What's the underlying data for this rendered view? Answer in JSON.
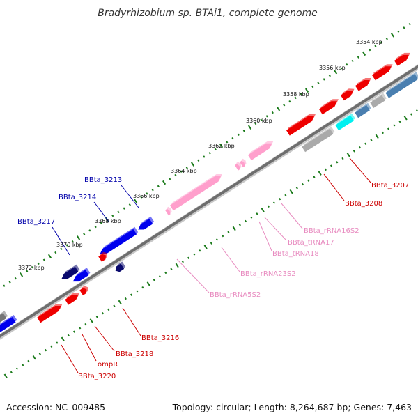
{
  "title": "Bradyrhizobium sp. BTAi1, complete genome",
  "footer": {
    "accession": "Accession: NC_009485",
    "summary": "Topology: circular; Length: 8,264,687 bp; Genes: 7,463"
  },
  "colors": {
    "forward_cds": "#ee0000",
    "reverse_cds": "#0000ee",
    "reverse_cds_dark": "#0a0a6e",
    "rna": "#ff9fcc",
    "other": "#aaaaaa",
    "steel": "#4a7fb0",
    "cyan": "#00f0f0",
    "tick": "#1a7a1a",
    "backbone": "#777777",
    "label_forward": "#cc0000",
    "label_reverse": "#0000aa",
    "label_rna": "#e88cc0"
  },
  "ticks": [
    {
      "label": "3354 kbp",
      "kbp": 3354
    },
    {
      "label": "3356 kbp",
      "kbp": 3356
    },
    {
      "label": "3358 kbp",
      "kbp": 3358
    },
    {
      "label": "3360 kbp",
      "kbp": 3360
    },
    {
      "label": "3362 kbp",
      "kbp": 3362
    },
    {
      "label": "3364 kbp",
      "kbp": 3364
    },
    {
      "label": "3366 kbp",
      "kbp": 3366
    },
    {
      "label": "3368 kbp",
      "kbp": 3368
    },
    {
      "label": "3370 kbp",
      "kbp": 3370
    },
    {
      "label": "3372 kbp",
      "kbp": 3372
    }
  ],
  "gene_labels": [
    {
      "name": "BBta_3207",
      "type": "forward"
    },
    {
      "name": "BBta_3208",
      "type": "forward"
    },
    {
      "name": "BBta_rRNA16S2",
      "type": "rna"
    },
    {
      "name": "BBta_tRNA17",
      "type": "rna"
    },
    {
      "name": "BBta_tRNA18",
      "type": "rna"
    },
    {
      "name": "BBta_rRNA23S2",
      "type": "rna"
    },
    {
      "name": "BBta_rRNA5S2",
      "type": "rna"
    },
    {
      "name": "BBta_3213",
      "type": "reverse"
    },
    {
      "name": "BBta_3214",
      "type": "reverse"
    },
    {
      "name": "BBta_3217",
      "type": "reverse"
    },
    {
      "name": "BBta_3216",
      "type": "forward"
    },
    {
      "name": "BBta_3218",
      "type": "forward"
    },
    {
      "name": "ompR",
      "type": "forward"
    },
    {
      "name": "BBta_3220",
      "type": "forward"
    }
  ]
}
